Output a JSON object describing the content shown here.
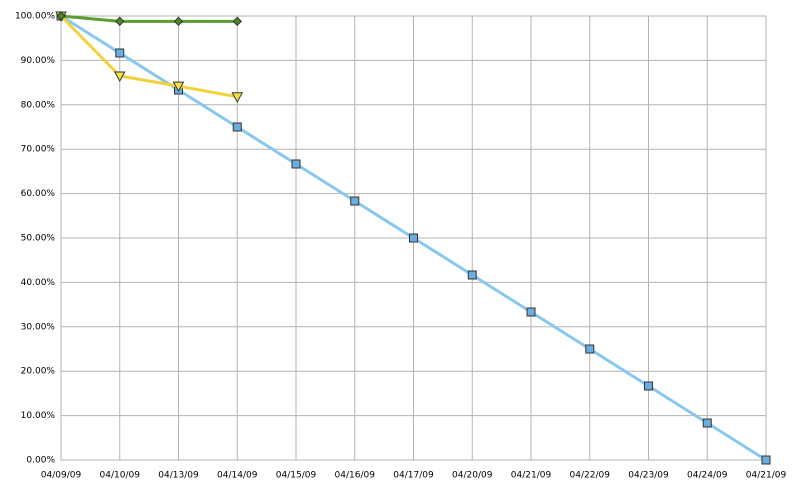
{
  "chart_data": {
    "type": "line",
    "categories": [
      "04/09/09",
      "04/10/09",
      "04/13/09",
      "04/14/09",
      "04/15/09",
      "04/16/09",
      "04/17/09",
      "04/20/09",
      "04/21/09",
      "04/22/09",
      "04/23/09",
      "04/24/09",
      "04/21/09"
    ],
    "series": [
      {
        "color": "#87c8ee",
        "marker": "square",
        "marker_color": "#6aaee0",
        "values": [
          100,
          91.67,
          83.33,
          75,
          66.67,
          58.33,
          50,
          41.67,
          33.33,
          25,
          16.67,
          8.33,
          0
        ]
      },
      {
        "color": "#f2d23a",
        "marker": "triangle-down",
        "marker_color": "#f5e04a",
        "values": [
          100,
          86.5,
          84.2,
          81.8,
          null,
          null,
          null,
          null,
          null,
          null,
          null,
          null,
          null
        ]
      },
      {
        "color": "#5c9e2e",
        "marker": "diamond",
        "marker_color": "#4b8a22",
        "values": [
          100,
          98.8,
          98.8,
          98.8,
          null,
          null,
          null,
          null,
          null,
          null,
          null,
          null,
          null
        ]
      }
    ],
    "ylim": [
      0,
      100
    ],
    "yticks": [
      {
        "value": 0,
        "label": "0.00%"
      },
      {
        "value": 10,
        "label": "10.00%"
      },
      {
        "value": 20,
        "label": "20.00%"
      },
      {
        "value": 30,
        "label": "30.00%"
      },
      {
        "value": 40,
        "label": "40.00%"
      },
      {
        "value": 50,
        "label": "50.00%"
      },
      {
        "value": 60,
        "label": "60.00%"
      },
      {
        "value": 70,
        "label": "70.00%"
      },
      {
        "value": 80,
        "label": "80.00%"
      },
      {
        "value": 90,
        "label": "90.00%"
      },
      {
        "value": 100,
        "label": "100.00%"
      }
    ],
    "grid": true
  }
}
